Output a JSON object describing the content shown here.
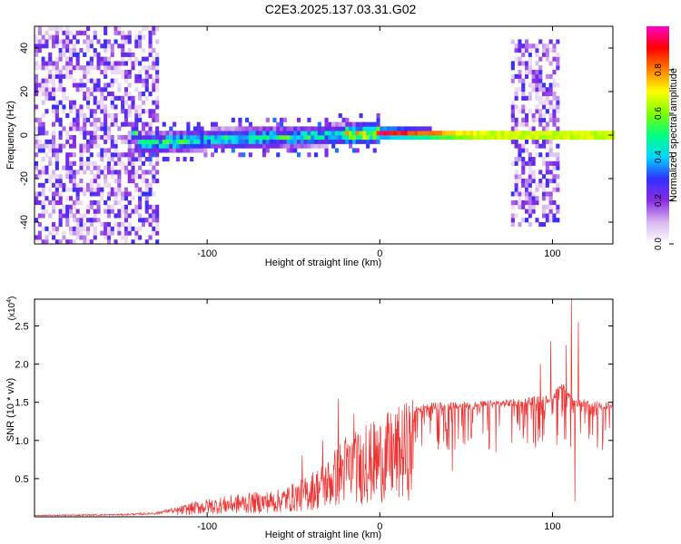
{
  "title": "C2E3.2025.137.03.31.G02",
  "chart_data": [
    {
      "type": "heatmap",
      "xlabel": "Height of straight line (km)",
      "ylabel": "Frequency (Hz)",
      "xlim": [
        -200,
        135
      ],
      "ylim": [
        -50,
        50
      ],
      "x_ticks": [
        {
          "value": -100,
          "label": "-100"
        },
        {
          "value": 0,
          "label": "0"
        },
        {
          "value": 100,
          "label": "100"
        }
      ],
      "y_ticks": [
        {
          "value": -40,
          "label": "-40"
        },
        {
          "value": -20,
          "label": "-20"
        },
        {
          "value": 0,
          "label": "0"
        },
        {
          "value": 20,
          "label": "20"
        },
        {
          "value": 40,
          "label": "40"
        }
      ],
      "colorbar": {
        "label": "Normalized spectral amplitude",
        "range": [
          0,
          1
        ],
        "ticks": [
          {
            "value": 0.0,
            "label": "0.0"
          },
          {
            "value": 0.2,
            "label": "0.2"
          },
          {
            "value": 0.4,
            "label": "0.4"
          },
          {
            "value": 0.6,
            "label": "0.6"
          },
          {
            "value": 0.8,
            "label": "0.8"
          }
        ],
        "colors": [
          "#ffffff",
          "#d8b8f0",
          "#8a2be2",
          "#3030ff",
          "#00d8ff",
          "#00ff7f",
          "#80ff00",
          "#ffff00",
          "#ff8000",
          "#ff0000",
          "#ff00c8"
        ]
      },
      "ridge": {
        "frequency_hz_by_height_km": [
          [
            -140,
            -5
          ],
          [
            -100,
            -3
          ],
          [
            -60,
            -2
          ],
          [
            -30,
            -1
          ],
          [
            0,
            0
          ],
          [
            60,
            -1
          ],
          [
            100,
            -1
          ],
          [
            135,
            -1
          ]
        ]
      },
      "noisy_regions_km": [
        [
          -200,
          -130
        ],
        [
          75,
          103
        ]
      ]
    },
    {
      "type": "line",
      "xlabel": "Height of straight line (km)",
      "ylabel": "SNR (10 * v/v)",
      "y_multiplier_label": "(x10^4)",
      "xlim": [
        -200,
        135
      ],
      "ylim": [
        0,
        2.85
      ],
      "color": "#ee3333",
      "x_ticks": [
        {
          "value": -100,
          "label": "-100"
        },
        {
          "value": 0,
          "label": "0"
        },
        {
          "value": 100,
          "label": "100"
        }
      ],
      "y_ticks": [
        {
          "value": 0.5,
          "label": "0.5"
        },
        {
          "value": 1.0,
          "label": "1.0"
        },
        {
          "value": 1.5,
          "label": "1.5"
        },
        {
          "value": 2.0,
          "label": "2.0"
        },
        {
          "value": 2.5,
          "label": "2.5"
        }
      ],
      "envelope": {
        "x": [
          -200,
          -150,
          -130,
          -120,
          -105,
          -80,
          -60,
          -45,
          -30,
          -20,
          -10,
          0,
          10,
          20,
          30,
          45,
          60,
          80,
          90,
          100,
          105,
          110,
          113,
          117,
          120,
          135
        ],
        "y": [
          0.02,
          0.03,
          0.05,
          0.1,
          0.2,
          0.28,
          0.32,
          0.45,
          0.7,
          1.0,
          1.05,
          1.2,
          1.3,
          1.45,
          1.5,
          1.5,
          1.52,
          1.55,
          1.58,
          1.6,
          1.8,
          1.6,
          1.55,
          1.55,
          1.52,
          1.5
        ]
      },
      "spikes": [
        {
          "x": -45,
          "y": 0.8
        },
        {
          "x": -33,
          "y": 1.0
        },
        {
          "x": -24,
          "y": 1.55
        },
        {
          "x": -15,
          "y": 1.35
        },
        {
          "x": -8,
          "y": 1.2
        },
        {
          "x": 42,
          "y": 0.6
        },
        {
          "x": 93,
          "y": 2.0
        },
        {
          "x": 99,
          "y": 2.3
        },
        {
          "x": 108,
          "y": 2.25
        },
        {
          "x": 111,
          "y": 2.85
        },
        {
          "x": 115,
          "y": 2.55
        },
        {
          "x": 113,
          "y": 0.2
        }
      ]
    }
  ]
}
